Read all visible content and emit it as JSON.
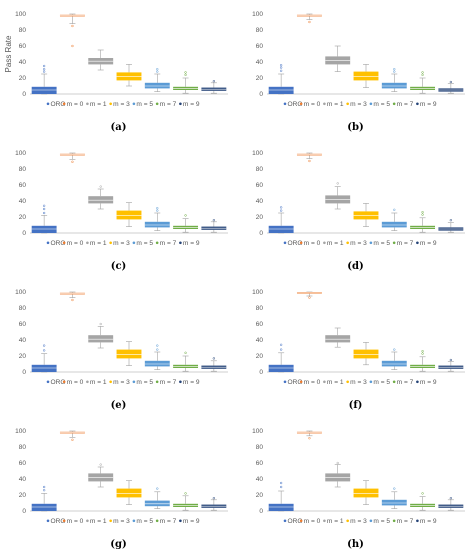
{
  "chart_data": [
    {
      "panel": "(a)",
      "type": "boxplot",
      "ylabel": "Pass Rate",
      "ylim": [
        0,
        100
      ],
      "yticks": [
        0,
        20,
        40,
        60,
        80,
        100
      ],
      "legend": {
        "placement": "bottom",
        "entries": [
          "ORG",
          "m = 0",
          "m = 1",
          "m = 3",
          "m = 5",
          "m = 7",
          "m = 9"
        ]
      },
      "series": [
        {
          "name": "ORG",
          "min": 0,
          "q1": 0,
          "median": 5,
          "q3": 9,
          "max": 25,
          "outliers": [
            28,
            31,
            35
          ]
        },
        {
          "name": "m = 0",
          "min": 88,
          "q1": 97,
          "median": 98,
          "q3": 99,
          "max": 100,
          "outliers": [
            60,
            85
          ]
        },
        {
          "name": "m = 1",
          "min": 30,
          "q1": 37,
          "median": 41,
          "q3": 45,
          "max": 55,
          "outliers": []
        },
        {
          "name": "m = 3",
          "min": 10,
          "q1": 17,
          "median": 22,
          "q3": 27,
          "max": 37,
          "outliers": []
        },
        {
          "name": "m = 5",
          "min": 3,
          "q1": 7,
          "median": 10,
          "q3": 14,
          "max": 25,
          "outliers": [
            28,
            31
          ]
        },
        {
          "name": "m = 7",
          "min": 1,
          "q1": 5,
          "median": 7,
          "q3": 9,
          "max": 20,
          "outliers": [
            24,
            27
          ]
        },
        {
          "name": "m = 9",
          "min": 1,
          "q1": 4,
          "median": 6,
          "q3": 8,
          "max": 14,
          "outliers": [
            16
          ]
        }
      ]
    },
    {
      "panel": "(b)",
      "type": "boxplot",
      "ylabel": "",
      "ylim": [
        0,
        100
      ],
      "yticks": [
        0,
        20,
        40,
        60,
        80,
        100
      ],
      "legend": {
        "placement": "bottom",
        "entries": [
          "ORG",
          "m = 0",
          "m = 1",
          "m = 3",
          "m = 5",
          "m = 7",
          "m = 9"
        ]
      },
      "series": [
        {
          "name": "ORG",
          "min": 0,
          "q1": 0,
          "median": 5,
          "q3": 9,
          "max": 25,
          "outliers": [
            29,
            33,
            36
          ]
        },
        {
          "name": "m = 0",
          "min": 93,
          "q1": 97,
          "median": 98,
          "q3": 99,
          "max": 100,
          "outliers": [
            90
          ]
        },
        {
          "name": "m = 1",
          "min": 28,
          "q1": 37,
          "median": 42,
          "q3": 47,
          "max": 60,
          "outliers": []
        },
        {
          "name": "m = 3",
          "min": 8,
          "q1": 17,
          "median": 22,
          "q3": 28,
          "max": 37,
          "outliers": []
        },
        {
          "name": "m = 5",
          "min": 3,
          "q1": 7,
          "median": 10,
          "q3": 14,
          "max": 25,
          "outliers": [
            28,
            31
          ]
        },
        {
          "name": "m = 7",
          "min": 1,
          "q1": 5,
          "median": 7,
          "q3": 9,
          "max": 20,
          "outliers": [
            24,
            27
          ]
        },
        {
          "name": "m = 9",
          "min": 1,
          "q1": 3,
          "median": 5,
          "q3": 7,
          "max": 13,
          "outliers": [
            15
          ]
        }
      ]
    },
    {
      "panel": "(c)",
      "type": "boxplot",
      "ylabel": "",
      "ylim": [
        0,
        100
      ],
      "yticks": [
        0,
        20,
        40,
        60,
        80,
        100
      ],
      "legend": {
        "placement": "bottom",
        "entries": [
          "ORG",
          "m = 0",
          "m = 1",
          "m = 3",
          "m = 5",
          "m = 7",
          "m = 9"
        ]
      },
      "series": [
        {
          "name": "ORG",
          "min": 0,
          "q1": 0,
          "median": 5,
          "q3": 9,
          "max": 22,
          "outliers": [
            25,
            30,
            34
          ]
        },
        {
          "name": "m = 0",
          "min": 92,
          "q1": 97,
          "median": 98,
          "q3": 99,
          "max": 100,
          "outliers": [
            89
          ]
        },
        {
          "name": "m = 1",
          "min": 30,
          "q1": 37,
          "median": 41,
          "q3": 46,
          "max": 55,
          "outliers": [
            58
          ]
        },
        {
          "name": "m = 3",
          "min": 8,
          "q1": 17,
          "median": 22,
          "q3": 28,
          "max": 38,
          "outliers": []
        },
        {
          "name": "m = 5",
          "min": 3,
          "q1": 7,
          "median": 10,
          "q3": 14,
          "max": 25,
          "outliers": [
            28,
            31
          ]
        },
        {
          "name": "m = 7",
          "min": 1,
          "q1": 5,
          "median": 7,
          "q3": 9,
          "max": 18,
          "outliers": [
            22
          ]
        },
        {
          "name": "m = 9",
          "min": 1,
          "q1": 4,
          "median": 6,
          "q3": 8,
          "max": 14,
          "outliers": [
            16
          ]
        }
      ]
    },
    {
      "panel": "(d)",
      "type": "boxplot",
      "ylabel": "",
      "ylim": [
        0,
        100
      ],
      "yticks": [
        0,
        20,
        40,
        60,
        80,
        100
      ],
      "legend": {
        "placement": "bottom",
        "entries": [
          "ORG",
          "m = 0",
          "m = 1",
          "m = 3",
          "m = 5",
          "m = 7",
          "m = 9"
        ]
      },
      "series": [
        {
          "name": "ORG",
          "min": 0,
          "q1": 0,
          "median": 5,
          "q3": 9,
          "max": 25,
          "outliers": [
            28,
            32
          ]
        },
        {
          "name": "m = 0",
          "min": 93,
          "q1": 97,
          "median": 98,
          "q3": 99,
          "max": 100,
          "outliers": [
            90
          ]
        },
        {
          "name": "m = 1",
          "min": 30,
          "q1": 37,
          "median": 42,
          "q3": 47,
          "max": 58,
          "outliers": [
            62
          ]
        },
        {
          "name": "m = 3",
          "min": 8,
          "q1": 17,
          "median": 22,
          "q3": 27,
          "max": 37,
          "outliers": []
        },
        {
          "name": "m = 5",
          "min": 3,
          "q1": 7,
          "median": 10,
          "q3": 14,
          "max": 25,
          "outliers": [
            29
          ]
        },
        {
          "name": "m = 7",
          "min": 1,
          "q1": 5,
          "median": 7,
          "q3": 9,
          "max": 19,
          "outliers": [
            23,
            26
          ]
        },
        {
          "name": "m = 9",
          "min": 1,
          "q1": 3,
          "median": 5,
          "q3": 7,
          "max": 13,
          "outliers": [
            16
          ]
        }
      ]
    },
    {
      "panel": "(e)",
      "type": "boxplot",
      "ylabel": "",
      "ylim": [
        0,
        100
      ],
      "yticks": [
        0,
        20,
        40,
        60,
        80,
        100
      ],
      "legend": {
        "placement": "bottom",
        "entries": [
          "ORG",
          "m = 0",
          "m = 1",
          "m = 3",
          "m = 5",
          "m = 7",
          "m = 9"
        ]
      },
      "series": [
        {
          "name": "ORG",
          "min": 0,
          "q1": 0,
          "median": 5,
          "q3": 9,
          "max": 23,
          "outliers": [
            27,
            33
          ]
        },
        {
          "name": "m = 0",
          "min": 93,
          "q1": 97,
          "median": 98,
          "q3": 99,
          "max": 100,
          "outliers": [
            90
          ]
        },
        {
          "name": "m = 1",
          "min": 30,
          "q1": 37,
          "median": 41,
          "q3": 46,
          "max": 57,
          "outliers": [
            60
          ]
        },
        {
          "name": "m = 3",
          "min": 8,
          "q1": 17,
          "median": 22,
          "q3": 28,
          "max": 38,
          "outliers": []
        },
        {
          "name": "m = 5",
          "min": 3,
          "q1": 7,
          "median": 10,
          "q3": 14,
          "max": 25,
          "outliers": [
            28,
            33
          ]
        },
        {
          "name": "m = 7",
          "min": 1,
          "q1": 5,
          "median": 7,
          "q3": 9,
          "max": 20,
          "outliers": [
            24
          ]
        },
        {
          "name": "m = 9",
          "min": 1,
          "q1": 4,
          "median": 6,
          "q3": 8,
          "max": 14,
          "outliers": [
            17
          ]
        }
      ]
    },
    {
      "panel": "(f)",
      "type": "boxplot",
      "ylabel": "",
      "ylim": [
        0,
        100
      ],
      "yticks": [
        0,
        20,
        40,
        60,
        80,
        100
      ],
      "legend": {
        "placement": "bottom",
        "entries": [
          "ORG",
          "m = 0",
          "m = 1",
          "m = 3",
          "m = 5",
          "m = 7",
          "m = 9"
        ]
      },
      "series": [
        {
          "name": "ORG",
          "min": 0,
          "q1": 0,
          "median": 5,
          "q3": 9,
          "max": 24,
          "outliers": [
            28,
            34
          ]
        },
        {
          "name": "m = 0",
          "min": 95,
          "q1": 98,
          "median": 99,
          "q3": 100,
          "max": 100,
          "outliers": [
            93
          ]
        },
        {
          "name": "m = 1",
          "min": 31,
          "q1": 37,
          "median": 41,
          "q3": 46,
          "max": 55,
          "outliers": []
        },
        {
          "name": "m = 3",
          "min": 9,
          "q1": 17,
          "median": 22,
          "q3": 28,
          "max": 37,
          "outliers": []
        },
        {
          "name": "m = 5",
          "min": 3,
          "q1": 7,
          "median": 10,
          "q3": 14,
          "max": 25,
          "outliers": [
            28
          ]
        },
        {
          "name": "m = 7",
          "min": 1,
          "q1": 5,
          "median": 7,
          "q3": 9,
          "max": 19,
          "outliers": [
            23,
            26
          ]
        },
        {
          "name": "m = 9",
          "min": 1,
          "q1": 4,
          "median": 6,
          "q3": 8,
          "max": 13,
          "outliers": [
            15
          ]
        }
      ]
    },
    {
      "panel": "(g)",
      "type": "boxplot",
      "ylabel": "",
      "ylim": [
        0,
        100
      ],
      "yticks": [
        0,
        20,
        40,
        60,
        80,
        100
      ],
      "legend": {
        "placement": "bottom",
        "entries": [
          "ORG",
          "m = 0",
          "m = 1",
          "m = 3",
          "m = 5",
          "m = 7",
          "m = 9"
        ]
      },
      "series": [
        {
          "name": "ORG",
          "min": 0,
          "q1": 0,
          "median": 5,
          "q3": 9,
          "max": 22,
          "outliers": [
            26,
            30
          ]
        },
        {
          "name": "m = 0",
          "min": 92,
          "q1": 97,
          "median": 98,
          "q3": 99,
          "max": 100,
          "outliers": [
            89
          ]
        },
        {
          "name": "m = 1",
          "min": 30,
          "q1": 37,
          "median": 42,
          "q3": 47,
          "max": 55,
          "outliers": [
            58
          ]
        },
        {
          "name": "m = 3",
          "min": 8,
          "q1": 17,
          "median": 22,
          "q3": 28,
          "max": 38,
          "outliers": []
        },
        {
          "name": "m = 5",
          "min": 3,
          "q1": 6,
          "median": 9,
          "q3": 13,
          "max": 24,
          "outliers": [
            28
          ]
        },
        {
          "name": "m = 7",
          "min": 1,
          "q1": 5,
          "median": 7,
          "q3": 9,
          "max": 19,
          "outliers": [
            22
          ]
        },
        {
          "name": "m = 9",
          "min": 1,
          "q1": 4,
          "median": 6,
          "q3": 8,
          "max": 14,
          "outliers": [
            16
          ]
        }
      ]
    },
    {
      "panel": "(h)",
      "type": "boxplot",
      "ylabel": "",
      "ylim": [
        0,
        100
      ],
      "yticks": [
        0,
        20,
        40,
        60,
        80,
        100
      ],
      "legend": {
        "placement": "bottom",
        "entries": [
          "ORG",
          "m = 0",
          "m = 1",
          "m = 3",
          "m = 5",
          "m = 7",
          "m = 9"
        ]
      },
      "series": [
        {
          "name": "ORG",
          "min": 0,
          "q1": 0,
          "median": 5,
          "q3": 9,
          "max": 25,
          "outliers": [
            30,
            35
          ]
        },
        {
          "name": "m = 0",
          "min": 94,
          "q1": 97,
          "median": 98,
          "q3": 99,
          "max": 100,
          "outliers": [
            91
          ]
        },
        {
          "name": "m = 1",
          "min": 30,
          "q1": 37,
          "median": 42,
          "q3": 47,
          "max": 58,
          "outliers": [
            60
          ]
        },
        {
          "name": "m = 3",
          "min": 8,
          "q1": 17,
          "median": 22,
          "q3": 28,
          "max": 38,
          "outliers": []
        },
        {
          "name": "m = 5",
          "min": 3,
          "q1": 7,
          "median": 10,
          "q3": 14,
          "max": 24,
          "outliers": [
            28
          ]
        },
        {
          "name": "m = 7",
          "min": 1,
          "q1": 5,
          "median": 7,
          "q3": 9,
          "max": 18,
          "outliers": [
            22
          ]
        },
        {
          "name": "m = 9",
          "min": 1,
          "q1": 4,
          "median": 6,
          "q3": 8,
          "max": 14,
          "outliers": [
            16
          ]
        }
      ]
    }
  ],
  "colors": {
    "ORG": "#4472C4",
    "m = 0": "#ED7D31",
    "m = 1": "#A5A5A5",
    "m = 3": "#FFC000",
    "m = 5": "#5B9BD5",
    "m = 7": "#70AD47",
    "m = 9": "#264478",
    "axis": "#BFBFBF",
    "text": "#595959"
  }
}
